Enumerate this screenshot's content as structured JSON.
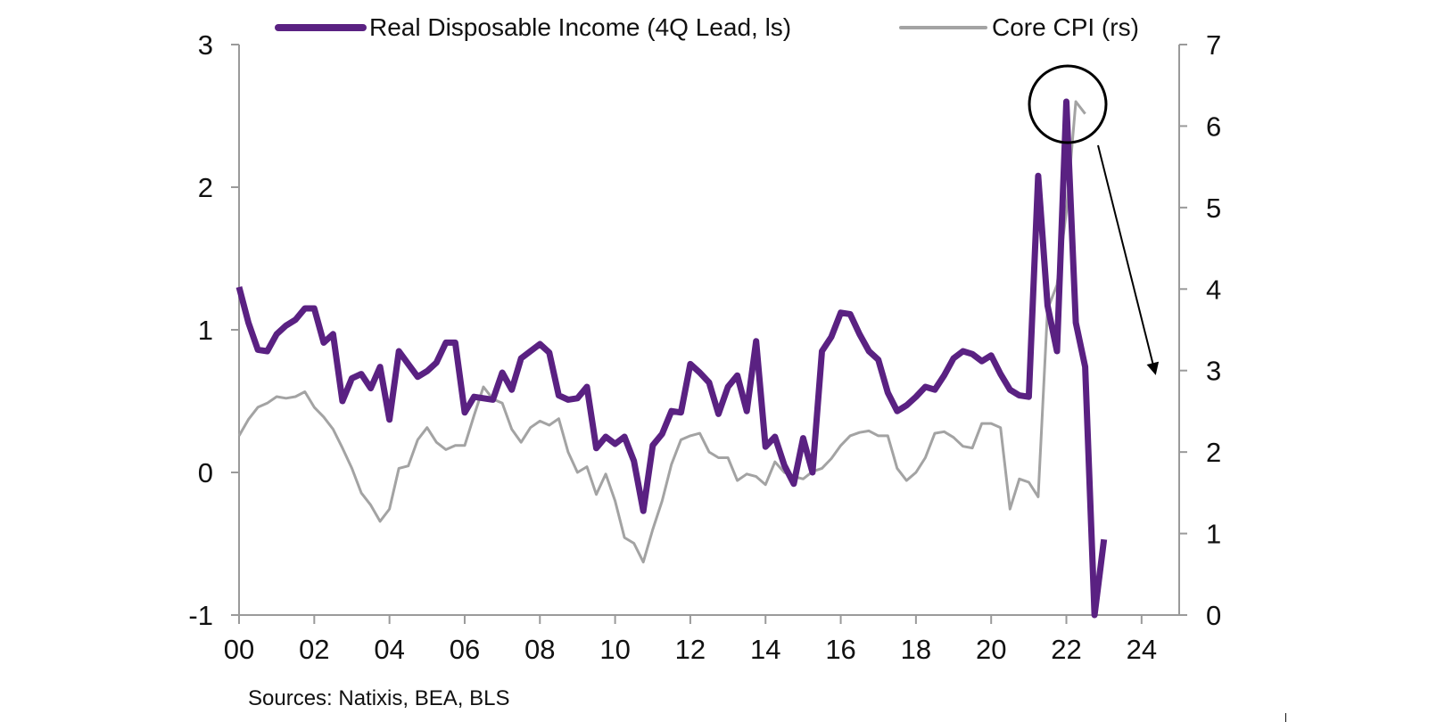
{
  "colors": {
    "income": "#5a2182",
    "cpi": "#a3a3a3",
    "axis": "#9a9a9a",
    "text": "#111111",
    "annotation": "#000000"
  },
  "source": "Sources: Natixis, BEA, BLS",
  "chart_data": {
    "type": "line",
    "title": "",
    "legend": {
      "placement": "top"
    },
    "grid": false,
    "x_axis": {
      "range": [
        2000,
        2025
      ],
      "tick_values": [
        2000,
        2002,
        2004,
        2006,
        2008,
        2010,
        2012,
        2014,
        2016,
        2018,
        2020,
        2022,
        2024
      ],
      "tick_labels": [
        "00",
        "02",
        "04",
        "06",
        "08",
        "10",
        "12",
        "14",
        "16",
        "18",
        "20",
        "22",
        "24"
      ]
    },
    "y_left": {
      "range": [
        -1,
        3
      ],
      "ticks": [
        -1,
        0,
        1,
        2,
        3
      ],
      "tick_labels": [
        "-1",
        "0",
        "1",
        "2",
        "3"
      ]
    },
    "y_right": {
      "range": [
        0,
        7
      ],
      "ticks": [
        0,
        1,
        2,
        3,
        4,
        5,
        6,
        7
      ],
      "tick_labels": [
        "0",
        "1",
        "2",
        "3",
        "4",
        "5",
        "6",
        "7"
      ]
    },
    "series": [
      {
        "name": "Real Disposable Income (4Q Lead, ls)",
        "axis": "left",
        "x": [
          2000.0,
          2000.25,
          2000.5,
          2000.75,
          2001.0,
          2001.25,
          2001.5,
          2001.75,
          2002.0,
          2002.25,
          2002.5,
          2002.75,
          2003.0,
          2003.25,
          2003.5,
          2003.75,
          2004.0,
          2004.25,
          2004.5,
          2004.75,
          2005.0,
          2005.25,
          2005.5,
          2005.75,
          2006.0,
          2006.25,
          2006.5,
          2006.75,
          2007.0,
          2007.25,
          2007.5,
          2007.75,
          2008.0,
          2008.25,
          2008.5,
          2008.75,
          2009.0,
          2009.25,
          2009.5,
          2009.75,
          2010.0,
          2010.25,
          2010.5,
          2010.75,
          2011.0,
          2011.25,
          2011.5,
          2011.75,
          2012.0,
          2012.25,
          2012.5,
          2012.75,
          2013.0,
          2013.25,
          2013.5,
          2013.75,
          2014.0,
          2014.25,
          2014.5,
          2014.75,
          2015.0,
          2015.25,
          2015.5,
          2015.75,
          2016.0,
          2016.25,
          2016.5,
          2016.75,
          2017.0,
          2017.25,
          2017.5,
          2017.75,
          2018.0,
          2018.25,
          2018.5,
          2018.75,
          2019.0,
          2019.25,
          2019.5,
          2019.75,
          2020.0,
          2020.25,
          2020.5,
          2020.75,
          2021.0,
          2021.25,
          2021.5,
          2021.75,
          2022.0,
          2022.25,
          2022.5,
          2022.75,
          2023.0
        ],
        "values": [
          1.3,
          1.05,
          0.86,
          0.85,
          0.97,
          1.03,
          1.07,
          1.15,
          1.15,
          0.91,
          0.97,
          0.5,
          0.66,
          0.69,
          0.59,
          0.74,
          0.37,
          0.85,
          0.76,
          0.67,
          0.71,
          0.77,
          0.91,
          0.91,
          0.42,
          0.53,
          0.52,
          0.51,
          0.7,
          0.58,
          0.8,
          0.85,
          0.9,
          0.84,
          0.54,
          0.51,
          0.52,
          0.6,
          0.17,
          0.25,
          0.2,
          0.25,
          0.08,
          -0.27,
          0.19,
          0.27,
          0.43,
          0.42,
          0.76,
          0.7,
          0.63,
          0.41,
          0.6,
          0.68,
          0.43,
          0.92,
          0.18,
          0.25,
          0.05,
          -0.08,
          0.24,
          0.0,
          0.85,
          0.95,
          1.12,
          1.11,
          0.97,
          0.85,
          0.79,
          0.56,
          0.43,
          0.47,
          0.53,
          0.6,
          0.58,
          0.68,
          0.8,
          0.85,
          0.83,
          0.78,
          0.82,
          0.69,
          0.58,
          0.54,
          0.53,
          2.08,
          1.17,
          0.85,
          2.6,
          1.05,
          0.74,
          -1.0,
          -0.47
        ]
      },
      {
        "name": "Core CPI (rs)",
        "axis": "right",
        "x": [
          2000.0,
          2000.25,
          2000.5,
          2000.75,
          2001.0,
          2001.25,
          2001.5,
          2001.75,
          2002.0,
          2002.25,
          2002.5,
          2002.75,
          2003.0,
          2003.25,
          2003.5,
          2003.75,
          2004.0,
          2004.25,
          2004.5,
          2004.75,
          2005.0,
          2005.25,
          2005.5,
          2005.75,
          2006.0,
          2006.25,
          2006.5,
          2006.75,
          2007.0,
          2007.25,
          2007.5,
          2007.75,
          2008.0,
          2008.25,
          2008.5,
          2008.75,
          2009.0,
          2009.25,
          2009.5,
          2009.75,
          2010.0,
          2010.25,
          2010.5,
          2010.75,
          2011.0,
          2011.25,
          2011.5,
          2011.75,
          2012.0,
          2012.25,
          2012.5,
          2012.75,
          2013.0,
          2013.25,
          2013.5,
          2013.75,
          2014.0,
          2014.25,
          2014.5,
          2014.75,
          2015.0,
          2015.25,
          2015.5,
          2015.75,
          2016.0,
          2016.25,
          2016.5,
          2016.75,
          2017.0,
          2017.25,
          2017.5,
          2017.75,
          2018.0,
          2018.25,
          2018.5,
          2018.75,
          2019.0,
          2019.25,
          2019.5,
          2019.75,
          2020.0,
          2020.25,
          2020.5,
          2020.75,
          2021.0,
          2021.25,
          2021.5,
          2021.75,
          2022.0,
          2022.25,
          2022.5
        ],
        "values": [
          2.2,
          2.4,
          2.55,
          2.6,
          2.68,
          2.66,
          2.68,
          2.74,
          2.55,
          2.43,
          2.28,
          2.05,
          1.8,
          1.5,
          1.35,
          1.15,
          1.3,
          1.8,
          1.83,
          2.15,
          2.3,
          2.12,
          2.03,
          2.08,
          2.08,
          2.45,
          2.8,
          2.65,
          2.6,
          2.28,
          2.12,
          2.3,
          2.38,
          2.33,
          2.41,
          2.0,
          1.75,
          1.82,
          1.48,
          1.73,
          1.4,
          0.95,
          0.88,
          0.65,
          1.05,
          1.4,
          1.85,
          2.15,
          2.2,
          2.23,
          2.0,
          1.93,
          1.93,
          1.65,
          1.73,
          1.7,
          1.6,
          1.88,
          1.75,
          1.7,
          1.67,
          1.76,
          1.8,
          1.92,
          2.08,
          2.2,
          2.24,
          2.26,
          2.2,
          2.2,
          1.8,
          1.65,
          1.75,
          1.93,
          2.23,
          2.25,
          2.18,
          2.07,
          2.05,
          2.35,
          2.35,
          2.3,
          1.3,
          1.67,
          1.63,
          1.45,
          3.75,
          4.05,
          4.95,
          6.3,
          6.15
        ]
      }
    ]
  }
}
